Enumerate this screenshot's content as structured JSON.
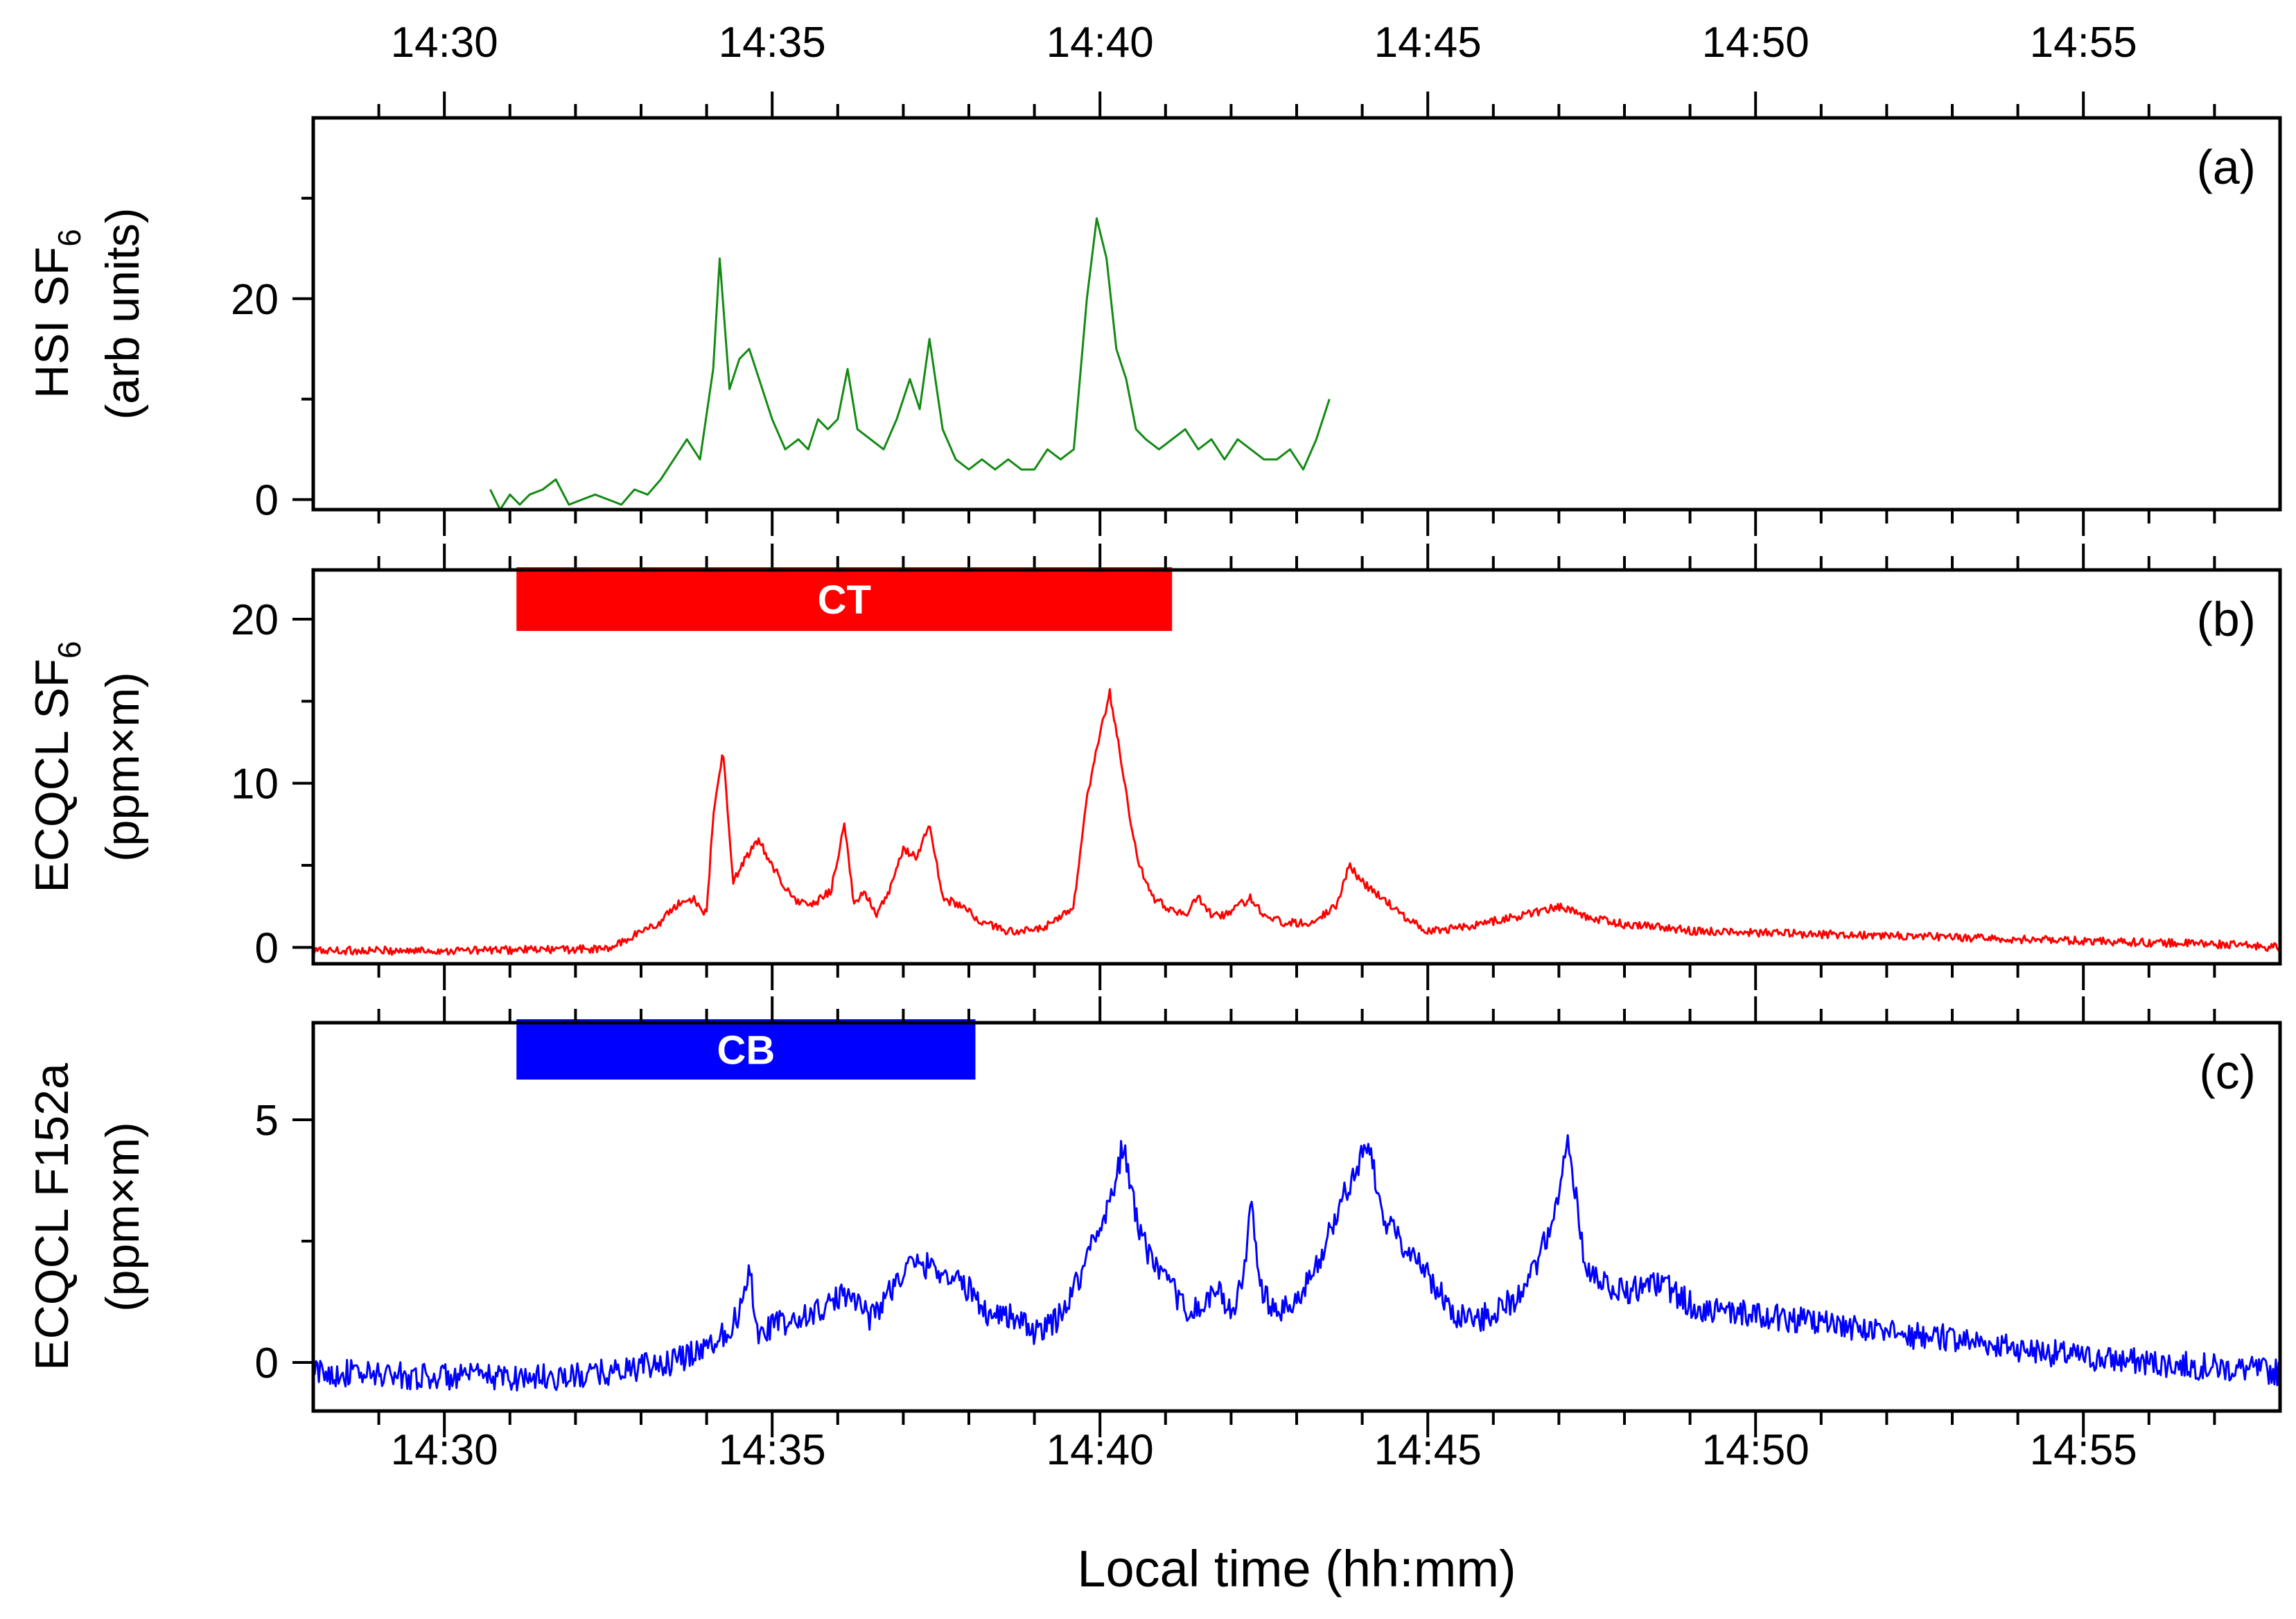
{
  "chart_data": {
    "type": "line",
    "x_axis": {
      "label": "Local time (hh:mm)",
      "range_minutes_after_14_00": [
        28,
        58
      ],
      "tick_labels": [
        "14:30",
        "14:35",
        "14:40",
        "14:45",
        "14:50",
        "14:55"
      ],
      "tick_values": [
        30,
        35,
        40,
        45,
        50,
        55
      ],
      "minor_tick_step": 1
    },
    "panels": [
      {
        "id": "a",
        "tag": "(a)",
        "ylabel_line1": "HSI SF",
        "ylabel_sub": "6",
        "ylabel_line2": "(arb units)",
        "ylim": [
          -1,
          38
        ],
        "yticks": [
          0,
          20
        ],
        "ytick_labels": [
          "0",
          "20"
        ],
        "series": [
          {
            "name": "HSI SF6",
            "color": "#138a13",
            "x": [
              30.7,
              30.85,
              31.0,
              31.15,
              31.3,
              31.5,
              31.7,
              31.9,
              32.1,
              32.3,
              32.5,
              32.7,
              32.9,
              33.1,
              33.3,
              33.5,
              33.7,
              33.9,
              34.1,
              34.2,
              34.35,
              34.5,
              34.65,
              34.8,
              35.0,
              35.2,
              35.4,
              35.55,
              35.7,
              35.85,
              36.0,
              36.15,
              36.3,
              36.5,
              36.7,
              36.9,
              37.1,
              37.25,
              37.4,
              37.6,
              37.8,
              38.0,
              38.2,
              38.4,
              38.6,
              38.8,
              39.0,
              39.2,
              39.4,
              39.6,
              39.8,
              39.95,
              40.1,
              40.25,
              40.4,
              40.55,
              40.7,
              40.9,
              41.1,
              41.3,
              41.5,
              41.7,
              41.9,
              42.1,
              42.3,
              42.5,
              42.7,
              42.9,
              43.1,
              43.3,
              43.5
            ],
            "y": [
              1,
              -1,
              0.5,
              -0.5,
              0.5,
              1,
              2,
              -0.5,
              0,
              0.5,
              0,
              -0.5,
              1,
              0.5,
              2,
              4,
              6,
              4,
              13,
              24,
              11,
              14,
              15,
              12,
              8,
              5,
              6,
              5,
              8,
              7,
              8,
              13,
              7,
              6,
              5,
              8,
              12,
              9,
              16,
              7,
              4,
              3,
              4,
              3,
              4,
              3,
              3,
              5,
              4,
              5,
              20,
              28,
              24,
              15,
              12,
              7,
              6,
              5,
              6,
              7,
              5,
              6,
              4,
              6,
              5,
              4,
              4,
              5,
              3,
              6,
              10
            ]
          }
        ]
      },
      {
        "id": "b",
        "tag": "(b)",
        "ylabel_line1": "ECQCL SF",
        "ylabel_sub": "6",
        "ylabel_line2": "(ppm×m)",
        "ylim": [
          -1,
          23
        ],
        "yticks": [
          0,
          10,
          20
        ],
        "ytick_labels": [
          "0",
          "10",
          "20"
        ],
        "annotation_bar": {
          "label": "CT",
          "start": 31.1,
          "end": 41.1,
          "color": "#ff0000"
        },
        "series": [
          {
            "name": "ECQCL SF6",
            "color": "#ff0000",
            "noise": 0.25,
            "x": [
              28,
              30,
              32.5,
              32.8,
              33.0,
              33.3,
              33.5,
              33.8,
              34.0,
              34.1,
              34.25,
              34.4,
              34.6,
              34.8,
              35.0,
              35.3,
              35.6,
              35.9,
              36.1,
              36.25,
              36.4,
              36.6,
              36.8,
              37.0,
              37.2,
              37.4,
              37.6,
              37.9,
              38.2,
              38.6,
              39.0,
              39.3,
              39.6,
              39.8,
              40.0,
              40.15,
              40.3,
              40.45,
              40.6,
              40.8,
              41.0,
              41.3,
              41.5,
              41.7,
              41.9,
              42.1,
              42.3,
              42.5,
              42.8,
              43.2,
              43.6,
              43.8,
              44.0,
              44.3,
              44.6,
              45.0,
              45.5,
              46.0,
              46.5,
              47.0,
              47.5,
              48.0,
              48.5,
              49.0,
              50.0,
              51.0,
              52.0,
              53.0,
              54.0,
              55.0,
              56.0,
              57.0,
              58.0
            ],
            "y": [
              -0.2,
              -0.2,
              -0.1,
              0.5,
              1.0,
              1.5,
              2.5,
              3.0,
              2.0,
              8.0,
              12.0,
              4.0,
              5.5,
              6.5,
              5.0,
              3.0,
              2.5,
              3.5,
              7.5,
              2.5,
              3.5,
              2.0,
              3.5,
              6.0,
              5.5,
              7.5,
              3.0,
              2.5,
              1.5,
              1.0,
              1.0,
              1.5,
              2.5,
              9.0,
              13.0,
              15.5,
              12.0,
              8.0,
              5.0,
              3.0,
              2.5,
              2.0,
              3.0,
              2.0,
              2.0,
              2.5,
              3.0,
              2.0,
              1.5,
              1.5,
              2.5,
              5.0,
              4.0,
              3.0,
              2.0,
              1.0,
              1.2,
              1.6,
              2.0,
              2.5,
              1.8,
              1.4,
              1.3,
              1.0,
              0.9,
              0.8,
              0.7,
              0.6,
              0.5,
              0.4,
              0.3,
              0.2,
              0.0
            ]
          }
        ]
      },
      {
        "id": "c",
        "tag": "(c)",
        "ylabel_line1": "ECQCL F152a",
        "ylabel_sub": "",
        "ylabel_line2": "(ppm×m)",
        "ylim": [
          -1,
          7
        ],
        "yticks": [
          0,
          5
        ],
        "ytick_labels": [
          "0",
          "5"
        ],
        "annotation_bar": {
          "label": "CB",
          "start": 31.1,
          "end": 38.1,
          "color": "#0000ff"
        },
        "series": [
          {
            "name": "ECQCL F152a",
            "color": "#0000ff",
            "noise": 0.28,
            "x": [
              28,
              30,
              32,
              33.5,
              34.2,
              34.5,
              34.65,
              34.8,
              35.0,
              35.3,
              35.6,
              35.9,
              36.2,
              36.5,
              36.8,
              37.1,
              37.4,
              37.7,
              38.0,
              38.3,
              38.6,
              39.0,
              39.3,
              39.6,
              39.9,
              40.2,
              40.35,
              40.55,
              40.8,
              41.1,
              41.4,
              41.6,
              41.8,
              42.0,
              42.2,
              42.3,
              42.45,
              42.7,
              43.0,
              43.3,
              43.6,
              43.9,
              44.1,
              44.3,
              44.6,
              45.0,
              45.4,
              45.8,
              46.2,
              46.5,
              46.8,
              47.0,
              47.15,
              47.4,
              47.8,
              48.2,
              48.6,
              49.0,
              49.5,
              50.0,
              51.0,
              52.0,
              53.0,
              54.0,
              55.0,
              56.0,
              57.0,
              58.0
            ],
            "y": [
              -0.2,
              -0.3,
              -0.3,
              0.0,
              0.5,
              1.0,
              2.0,
              0.5,
              0.8,
              0.8,
              1.0,
              1.2,
              1.5,
              0.9,
              1.5,
              2.0,
              2.0,
              1.8,
              1.5,
              1.0,
              1.0,
              0.6,
              0.8,
              1.5,
              2.5,
              3.5,
              4.5,
              3.0,
              2.0,
              1.5,
              1.0,
              1.2,
              1.5,
              1.0,
              1.8,
              3.3,
              1.5,
              1.0,
              1.2,
              2.0,
              3.0,
              4.0,
              4.5,
              3.0,
              2.5,
              1.8,
              1.0,
              0.9,
              1.2,
              1.5,
              2.5,
              3.5,
              4.5,
              2.0,
              1.5,
              1.5,
              1.6,
              1.2,
              1.0,
              1.0,
              0.8,
              0.6,
              0.5,
              0.3,
              0.1,
              0.0,
              -0.1,
              -0.2
            ]
          }
        ]
      }
    ]
  }
}
